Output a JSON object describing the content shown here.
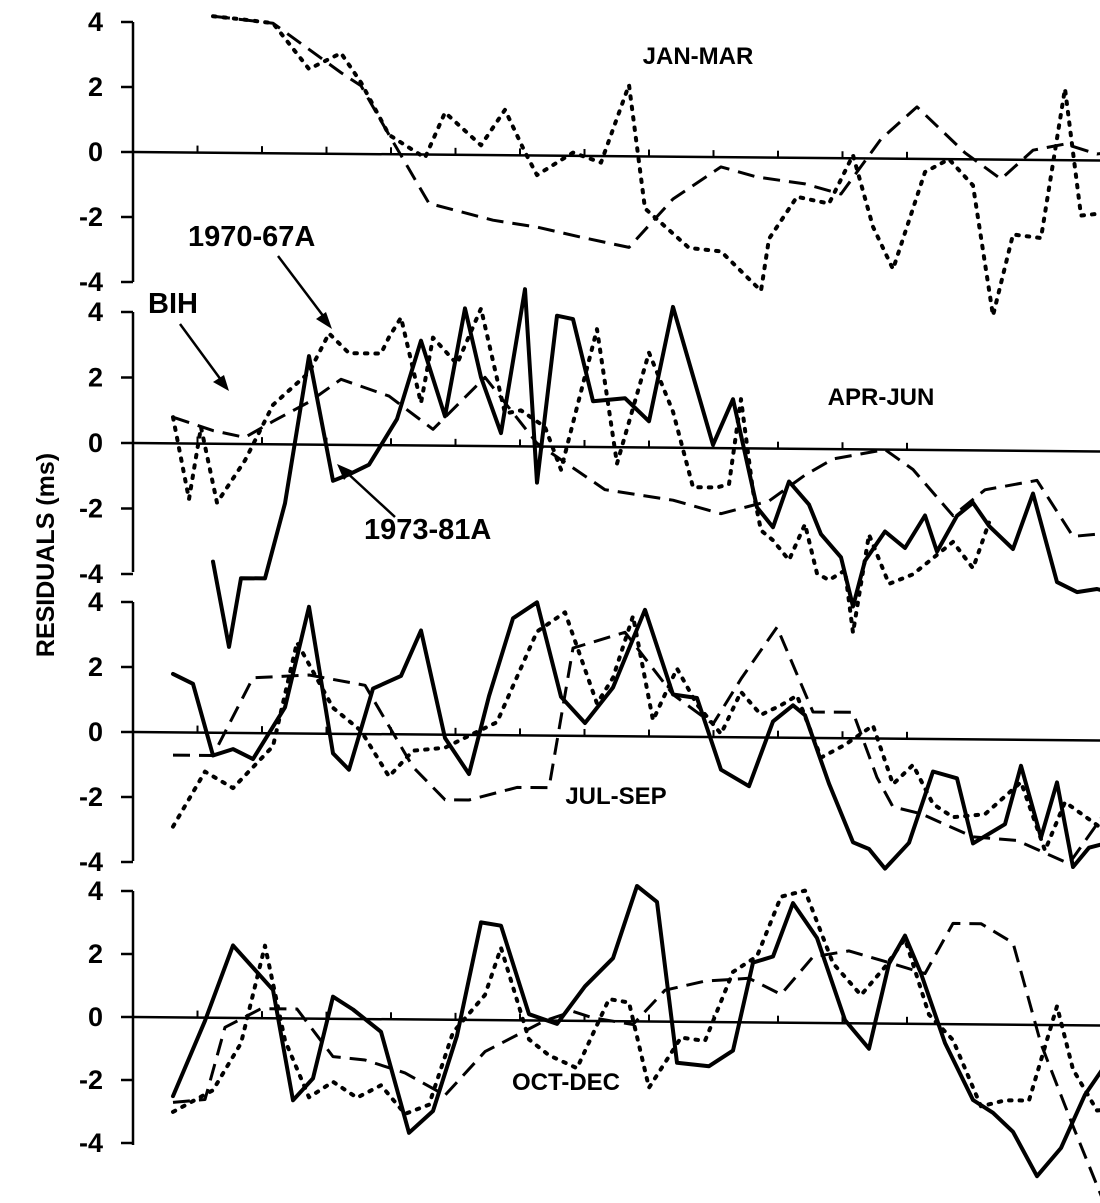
{
  "ylabel": "RESIDUALS (ms)",
  "colors": {
    "ink": "#000000",
    "background": "#ffffff"
  },
  "chart_data": [
    {
      "type": "line",
      "title": "JAN-MAR",
      "ylim": [
        -4,
        4
      ],
      "yticks": [
        "4",
        "2",
        "0",
        "-2",
        "-4"
      ],
      "grid": false,
      "series": [
        {
          "style": "solid",
          "x": [],
          "y": []
        },
        {
          "style": "dotted",
          "x": [
            20,
            28,
            35,
            44,
            52,
            57,
            64,
            73,
            78,
            87,
            93,
            98,
            101,
            110,
            117,
            124,
            128,
            139,
            147,
            157,
            159,
            166,
            174,
            180,
            185,
            190,
            198,
            204,
            210,
            215,
            220,
            227,
            233,
            237,
            244,
            248,
            253,
            261,
            265
          ],
          "y": [
            4.2,
            4.1,
            4,
            2.6,
            3.1,
            2.2,
            0.6,
            -0.1,
            1.3,
            0.3,
            1.4,
            0.1,
            -0.6,
            0.1,
            -0.2,
            2.2,
            -1.6,
            -2.8,
            -2.9,
            -4.1,
            -2.5,
            -1.2,
            -1.4,
            0.1,
            -2.1,
            -3.4,
            -0.4,
            0,
            -0.8,
            -4.8,
            -2.3,
            -2.4,
            2.2,
            -1.7,
            -1.6,
            -1.2,
            2.1,
            -0.7,
            -1.6
          ]
        },
        {
          "style": "dashed",
          "x": [
            20,
            35,
            52,
            57,
            64,
            74,
            90,
            101,
            112,
            124,
            135,
            147,
            156,
            168,
            177,
            187,
            196,
            208,
            217,
            225,
            233,
            241,
            252,
            266
          ],
          "y": [
            4.2,
            4,
            2.5,
            2.1,
            0.6,
            -1.5,
            -2,
            -2.2,
            -2.5,
            -2.8,
            -1.3,
            -0.3,
            -0.6,
            -0.8,
            -1.1,
            0.6,
            1.6,
            0.2,
            -0.6,
            0.3,
            0.5,
            0.2,
            0.4,
            0.5
          ]
        }
      ]
    },
    {
      "type": "line",
      "title": "APR-JUN",
      "ylim": [
        -4,
        4
      ],
      "yticks": [
        "4",
        "2",
        "0",
        "-2",
        "-4"
      ],
      "grid": false,
      "series": [
        {
          "style": "solid",
          "x": [
            20,
            24,
            27,
            33,
            38,
            44,
            50,
            54,
            59,
            66,
            72,
            78,
            83,
            87,
            92,
            98,
            101,
            106,
            110,
            115,
            123,
            129,
            135,
            140,
            145,
            150,
            156,
            160,
            164,
            169,
            172,
            177,
            180,
            183,
            188,
            193,
            198,
            201,
            206,
            210,
            214,
            220,
            225,
            231,
            236,
            241,
            244,
            248,
            252,
            256,
            260,
            263,
            266
          ],
          "y": [
            -3.6,
            -6.2,
            -4.1,
            -4.1,
            -1.8,
            2.7,
            -1.1,
            -0.9,
            -0.6,
            0.8,
            3.2,
            0.9,
            4.2,
            2.1,
            0.4,
            4.8,
            -1.1,
            4,
            3.9,
            1.4,
            1.5,
            0.8,
            4.3,
            2.2,
            0.1,
            1.5,
            -1.8,
            -2.4,
            -1,
            -1.7,
            -2.6,
            -3.3,
            -4.8,
            -3.4,
            -2.5,
            -3,
            -2,
            -3.1,
            -2,
            -1.6,
            -2.3,
            -3,
            -1.3,
            -4,
            -4.3,
            -4.2,
            -4.3,
            -3,
            -4.2,
            -5,
            -4.2,
            -2.9,
            -3.3
          ]
        },
        {
          "style": "dotted",
          "x": [
            10,
            14,
            17,
            21,
            28,
            35,
            44,
            49,
            54,
            62,
            64,
            67,
            72,
            75,
            81,
            87,
            93,
            97,
            103,
            107,
            116,
            121,
            129,
            135,
            140,
            146,
            149,
            152,
            155,
            157,
            160,
            164,
            168,
            171,
            174,
            178,
            180,
            184,
            189,
            195,
            205,
            210,
            214
          ],
          "y": [
            0.8,
            -1.7,
            0.5,
            -1.8,
            -0.5,
            1.2,
            2.2,
            3.4,
            2.8,
            2.8,
            3.3,
            3.9,
            1.3,
            3.3,
            2.5,
            4.2,
            1,
            1.1,
            0.6,
            -0.7,
            3.6,
            -0.5,
            2.9,
            1.1,
            -1.2,
            -1.2,
            -1.1,
            1.5,
            -1.3,
            -2.5,
            -2.8,
            -3.4,
            -2.3,
            -3.8,
            -4,
            -3.7,
            -5.6,
            -2.6,
            -4.1,
            -3.8,
            -2.8,
            -3.6,
            -2.2
          ]
        },
        {
          "style": "dashed",
          "x": [
            10,
            20,
            28,
            35,
            44,
            52,
            64,
            75,
            88,
            101,
            118,
            135,
            147,
            159,
            168,
            175,
            188,
            195,
            205,
            213,
            226,
            235,
            243,
            253,
            262,
            266
          ],
          "y": [
            0.8,
            0.4,
            0.2,
            0.7,
            1.3,
            2,
            1.5,
            0.5,
            2.1,
            0.1,
            -1.3,
            -1.6,
            -2,
            -1.6,
            -0.8,
            -0.3,
            0,
            -0.6,
            -2,
            -1.2,
            -0.9,
            -2.6,
            -2.5,
            -0.6,
            -0.7,
            -3.2
          ]
        }
      ]
    },
    {
      "type": "line",
      "title": "JUL-SEP",
      "ylim": [
        -4,
        4
      ],
      "yticks": [
        "4",
        "2",
        "0",
        "-2",
        "-4"
      ],
      "grid": false,
      "series": [
        {
          "style": "solid",
          "x": [
            10,
            15,
            20,
            25,
            30,
            38,
            44,
            50,
            54,
            60,
            67,
            72,
            78,
            84,
            89,
            95,
            101,
            107,
            113,
            120,
            128,
            135,
            141,
            147,
            154,
            160,
            165,
            168,
            174,
            180,
            184,
            188,
            194,
            200,
            206,
            210,
            218,
            222,
            227,
            231,
            235,
            239,
            242,
            246,
            250,
            253,
            257,
            261,
            265
          ],
          "y": [
            1.8,
            1.5,
            -0.7,
            -0.5,
            -0.8,
            0.8,
            3.9,
            -0.6,
            -1.1,
            1.4,
            1.8,
            3.2,
            -0.1,
            -1.2,
            1.2,
            3.6,
            4.1,
            1.2,
            0.4,
            1.5,
            3.9,
            1.3,
            1.2,
            -1,
            -1.5,
            0.5,
            1,
            0.7,
            -1.4,
            -3.2,
            -3.4,
            -4,
            -3.2,
            -1,
            -1.2,
            -3.2,
            -2.6,
            -0.8,
            -3,
            -1.3,
            -3.9,
            -3.3,
            -3.2,
            -2.6,
            -2.6,
            -2.7,
            -2.6,
            -2.8,
            -2.6
          ]
        },
        {
          "style": "dotted",
          "x": [
            10,
            18,
            25,
            35,
            41,
            50,
            57,
            64,
            70,
            78,
            86,
            91,
            101,
            108,
            116,
            120,
            125,
            130,
            136,
            141,
            147,
            152,
            157,
            162,
            166,
            172,
            178,
            185,
            190,
            195,
            200,
            205,
            213,
            222,
            228,
            233,
            241,
            246,
            253,
            262
          ],
          "y": [
            -2.9,
            -1.2,
            -1.7,
            -0.4,
            2.8,
            0.8,
            0.1,
            -1.3,
            -0.5,
            -0.4,
            0.1,
            0.4,
            3.2,
            3.8,
            1,
            1.8,
            3.7,
            0.5,
            2.1,
            1,
            0.1,
            1.4,
            0.7,
            1,
            1.3,
            -0.6,
            -0.2,
            0.4,
            -1.4,
            -0.8,
            -2,
            -2.4,
            -2.3,
            -1.3,
            -3.4,
            -1.9,
            -2.6,
            -3.1,
            -2.5,
            -2.8
          ]
        },
        {
          "style": "dashed",
          "x": [
            10,
            20,
            30,
            44,
            58,
            70,
            78,
            84,
            96,
            104,
            110,
            123,
            135,
            145,
            152,
            161,
            170,
            180,
            186,
            190,
            197,
            210,
            221,
            234,
            246,
            256,
            265
          ],
          "y": [
            -0.7,
            -0.7,
            1.7,
            1.8,
            1.5,
            -1,
            -2,
            -2,
            -1.6,
            -1.6,
            2.7,
            3.2,
            1.3,
            0.4,
            1.8,
            3.4,
            0.8,
            0.8,
            -1.2,
            -2.1,
            -2.3,
            -3,
            -3.1,
            -3.8,
            -1.7,
            -2.4,
            -2.8
          ]
        }
      ]
    },
    {
      "type": "line",
      "title": "OCT-DEC",
      "ylim": [
        -4,
        4
      ],
      "yticks": [
        "4",
        "2",
        "0",
        "-2",
        "-4"
      ],
      "grid": false,
      "series": [
        {
          "style": "solid",
          "x": [
            10,
            18,
            25,
            35,
            40,
            45,
            50,
            55,
            62,
            69,
            75,
            81,
            87,
            92,
            99,
            106,
            113,
            120,
            126,
            131,
            136,
            144,
            150,
            155,
            160,
            165,
            171,
            178,
            184,
            189,
            193,
            197,
            203,
            210,
            215,
            220,
            226,
            232,
            238,
            245,
            252,
            258,
            266
          ],
          "y": [
            -2.5,
            -0.1,
            2.3,
            0.9,
            -2.6,
            -1.9,
            0.7,
            0.3,
            -0.4,
            -3.6,
            -2.9,
            -0.5,
            3.1,
            3,
            0.2,
            -0.1,
            1.1,
            2,
            4.3,
            3.8,
            -1.3,
            -1.4,
            -0.9,
            1.9,
            2.1,
            3.8,
            2.7,
            0.1,
            -0.8,
            1.9,
            2.8,
            1.6,
            -0.6,
            -2.4,
            -2.8,
            -3.4,
            -4.8,
            -3.9,
            -2.2,
            -0.9,
            -1.9,
            -1.8,
            -1.7
          ]
        },
        {
          "style": "dotted",
          "x": [
            10,
            20,
            27,
            33,
            38,
            44,
            50,
            56,
            62,
            68,
            74,
            80,
            88,
            92,
            99,
            104,
            111,
            119,
            124,
            129,
            137,
            143,
            150,
            156,
            162,
            168,
            175,
            182,
            188,
            193,
            199,
            205,
            212,
            218,
            224,
            231,
            235,
            241,
            248,
            256,
            263
          ],
          "y": [
            -3,
            -2.3,
            -0.8,
            2.3,
            -0.7,
            -2.5,
            -2,
            -2.5,
            -2.1,
            -3,
            -2.7,
            -0.4,
            0.8,
            2.3,
            -0.6,
            -1.1,
            -1.5,
            0.7,
            0.6,
            -2.1,
            -0.5,
            -0.6,
            1.6,
            2.1,
            4,
            4.2,
            1.9,
            0.9,
            1.8,
            2.7,
            0.3,
            -0.5,
            -2.6,
            -2.4,
            -2.4,
            0.6,
            -1.4,
            -2.7,
            -2.6,
            -2.9,
            -2.7
          ]
        },
        {
          "style": "dashed",
          "x": [
            10,
            18,
            23,
            32,
            41,
            50,
            58,
            68,
            78,
            88,
            94,
            103,
            110,
            115,
            125,
            133,
            143,
            154,
            162,
            170,
            179,
            190,
            198,
            205,
            212,
            220,
            227,
            235,
            243,
            252,
            259,
            266
          ],
          "y": [
            -2.7,
            -2.6,
            -0.3,
            0.3,
            0.3,
            -1.2,
            -1.3,
            -1.7,
            -2.4,
            -1,
            -0.6,
            0,
            0.3,
            0.1,
            -0.1,
            1,
            1.3,
            1.4,
            0.9,
            2.1,
            2.3,
            1.9,
            1.6,
            3.2,
            3.2,
            2.6,
            -0.6,
            -3.2,
            -5.7,
            -3.2,
            -2.7,
            -2.2
          ]
        }
      ]
    }
  ],
  "callouts": [
    {
      "text": "1970-67A"
    },
    {
      "text": "BIH"
    },
    {
      "text": "1973-81A"
    }
  ]
}
